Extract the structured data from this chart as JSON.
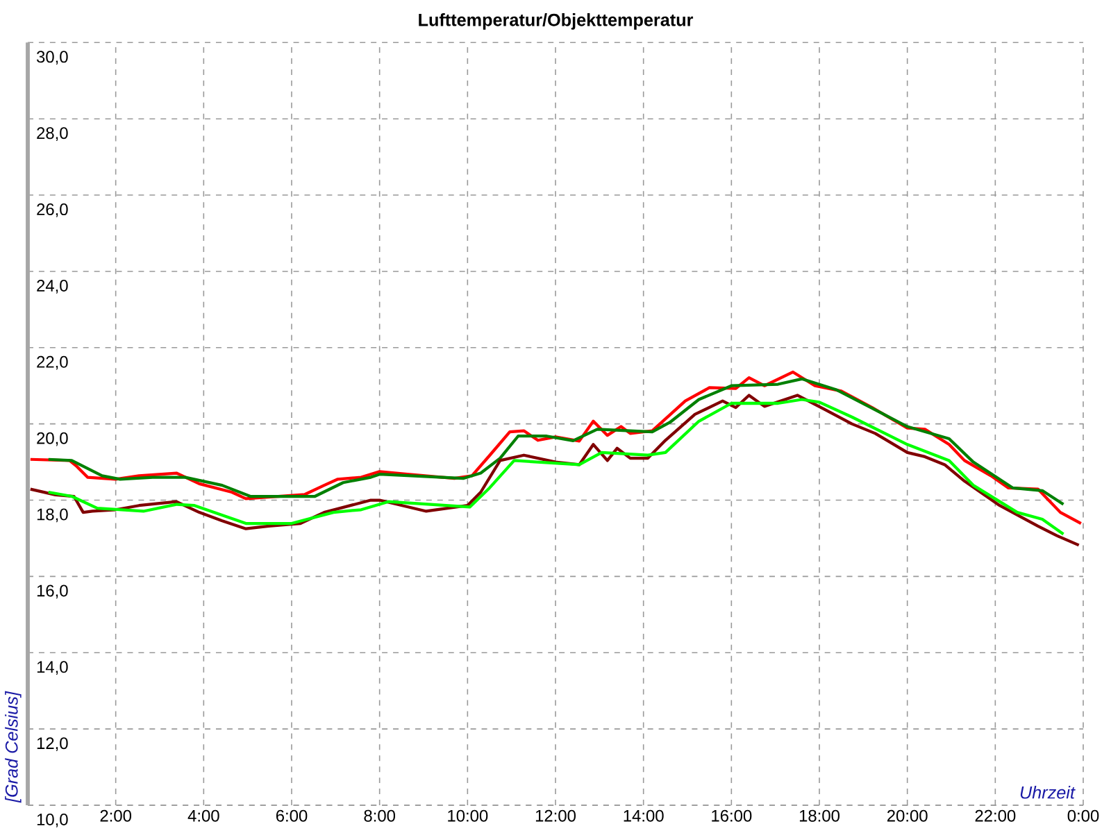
{
  "chart_data": {
    "type": "line",
    "title": "Lufttemperatur/Objekttemperatur",
    "xlabel": "Uhrzeit",
    "ylabel": "[Grad Celsius]",
    "xlim": [
      0,
      24
    ],
    "ylim": [
      10,
      30
    ],
    "xticks": [
      {
        "value": 0,
        "label": null
      },
      {
        "value": 2,
        "label": "2:00"
      },
      {
        "value": 4,
        "label": "4:00"
      },
      {
        "value": 6,
        "label": "6:00"
      },
      {
        "value": 8,
        "label": "8:00"
      },
      {
        "value": 10,
        "label": "10:00"
      },
      {
        "value": 12,
        "label": "12:00"
      },
      {
        "value": 14,
        "label": "14:00"
      },
      {
        "value": 16,
        "label": "16:00"
      },
      {
        "value": 18,
        "label": "18:00"
      },
      {
        "value": 20,
        "label": "20:00"
      },
      {
        "value": 22,
        "label": "22:00"
      },
      {
        "value": 24,
        "label": "0:00"
      }
    ],
    "yticks": [
      {
        "value": 10,
        "label": "10,0"
      },
      {
        "value": 12,
        "label": "12,0"
      },
      {
        "value": 14,
        "label": "14,0"
      },
      {
        "value": 16,
        "label": "16,0"
      },
      {
        "value": 18,
        "label": "18,0"
      },
      {
        "value": 20,
        "label": "20,0"
      },
      {
        "value": 22,
        "label": "22,0"
      },
      {
        "value": 24,
        "label": "24,0"
      },
      {
        "value": 26,
        "label": "26,0"
      },
      {
        "value": 28,
        "label": "28,0"
      },
      {
        "value": 30,
        "label": "30,0"
      }
    ],
    "grid": true,
    "marker": "none",
    "line_style": "solid",
    "series": [
      {
        "color": "#ff0000",
        "x": [
          0.06,
          0.95,
          1.1,
          1.36,
          2.0,
          2.53,
          3.38,
          3.9,
          4.64,
          4.96,
          5.69,
          6.3,
          6.74,
          7.05,
          7.58,
          8.0,
          8.63,
          9.7,
          10.1,
          10.5,
          10.96,
          11.28,
          11.6,
          12.0,
          12.54,
          12.86,
          13.18,
          13.49,
          13.7,
          14.2,
          14.95,
          15.5,
          16.1,
          16.4,
          16.75,
          17.4,
          17.9,
          18.5,
          19.2,
          20.0,
          20.4,
          20.95,
          21.3,
          21.9,
          22.3,
          22.97,
          23.48,
          23.95
        ],
        "values": [
          19.07,
          19.04,
          18.9,
          18.6,
          18.55,
          18.64,
          18.71,
          18.43,
          18.21,
          18.04,
          18.1,
          18.15,
          18.39,
          18.55,
          18.6,
          18.75,
          18.68,
          18.57,
          18.64,
          19.17,
          19.79,
          19.82,
          19.57,
          19.66,
          19.55,
          20.07,
          19.7,
          19.93,
          19.75,
          19.82,
          20.6,
          20.95,
          20.93,
          21.21,
          21.0,
          21.36,
          21.0,
          20.86,
          20.43,
          19.89,
          19.86,
          19.46,
          19.04,
          18.64,
          18.32,
          18.29,
          17.68,
          17.39
        ]
      },
      {
        "color": "#008000",
        "x": [
          0.47,
          1.0,
          1.69,
          2.1,
          2.84,
          3.58,
          4.42,
          5.06,
          6.53,
          7.17,
          7.8,
          8.0,
          9.9,
          10.3,
          10.74,
          11.15,
          11.8,
          12.4,
          12.95,
          14.2,
          14.6,
          15.26,
          16.0,
          17.06,
          17.6,
          18.4,
          20.0,
          20.95,
          21.5,
          22.4,
          23.07,
          23.55
        ],
        "values": [
          19.07,
          19.04,
          18.64,
          18.55,
          18.6,
          18.6,
          18.39,
          18.1,
          18.1,
          18.46,
          18.6,
          18.68,
          18.57,
          18.71,
          19.1,
          19.68,
          19.68,
          19.56,
          19.86,
          19.79,
          20.04,
          20.64,
          21.0,
          21.04,
          21.18,
          20.89,
          19.93,
          19.61,
          19.0,
          18.32,
          18.25,
          17.89
        ]
      },
      {
        "color": "#800000",
        "x": [
          0.06,
          0.63,
          1.05,
          1.26,
          1.47,
          2.0,
          2.53,
          3.38,
          3.9,
          4.42,
          4.96,
          5.48,
          6.2,
          6.74,
          7.8,
          8.0,
          9.06,
          10.0,
          10.3,
          10.74,
          11.28,
          12.0,
          12.54,
          12.86,
          13.18,
          13.4,
          13.7,
          14.1,
          14.5,
          15.17,
          15.8,
          16.1,
          16.4,
          16.75,
          17.5,
          18.1,
          18.74,
          19.27,
          20.0,
          20.4,
          20.85,
          21.3,
          22.1,
          22.97,
          23.4,
          23.9
        ],
        "values": [
          18.29,
          18.14,
          18.1,
          17.68,
          17.71,
          17.75,
          17.86,
          17.96,
          17.68,
          17.46,
          17.25,
          17.32,
          17.39,
          17.68,
          18.0,
          18.0,
          17.71,
          17.86,
          18.21,
          19.04,
          19.18,
          19.0,
          18.93,
          19.46,
          19.04,
          19.36,
          19.1,
          19.1,
          19.57,
          20.25,
          20.6,
          20.43,
          20.75,
          20.46,
          20.75,
          20.39,
          20.0,
          19.75,
          19.25,
          19.14,
          18.93,
          18.5,
          17.86,
          17.32,
          17.07,
          16.82
        ]
      },
      {
        "color": "#00ff00",
        "x": [
          0.47,
          1.0,
          1.58,
          2.63,
          3.38,
          3.79,
          4.96,
          6.0,
          6.95,
          7.58,
          8.2,
          10.05,
          10.5,
          11.06,
          12.54,
          13.05,
          14.1,
          14.5,
          15.26,
          16.0,
          17.06,
          17.6,
          18.0,
          18.74,
          20.0,
          20.95,
          21.5,
          22.5,
          23.07,
          23.55
        ],
        "values": [
          18.21,
          18.1,
          17.79,
          17.71,
          17.89,
          17.86,
          17.39,
          17.39,
          17.68,
          17.75,
          17.96,
          17.82,
          18.32,
          19.04,
          18.93,
          19.25,
          19.18,
          19.25,
          20.07,
          20.54,
          20.54,
          20.64,
          20.57,
          20.18,
          19.46,
          19.04,
          18.39,
          17.68,
          17.5,
          17.11
        ]
      }
    ]
  }
}
